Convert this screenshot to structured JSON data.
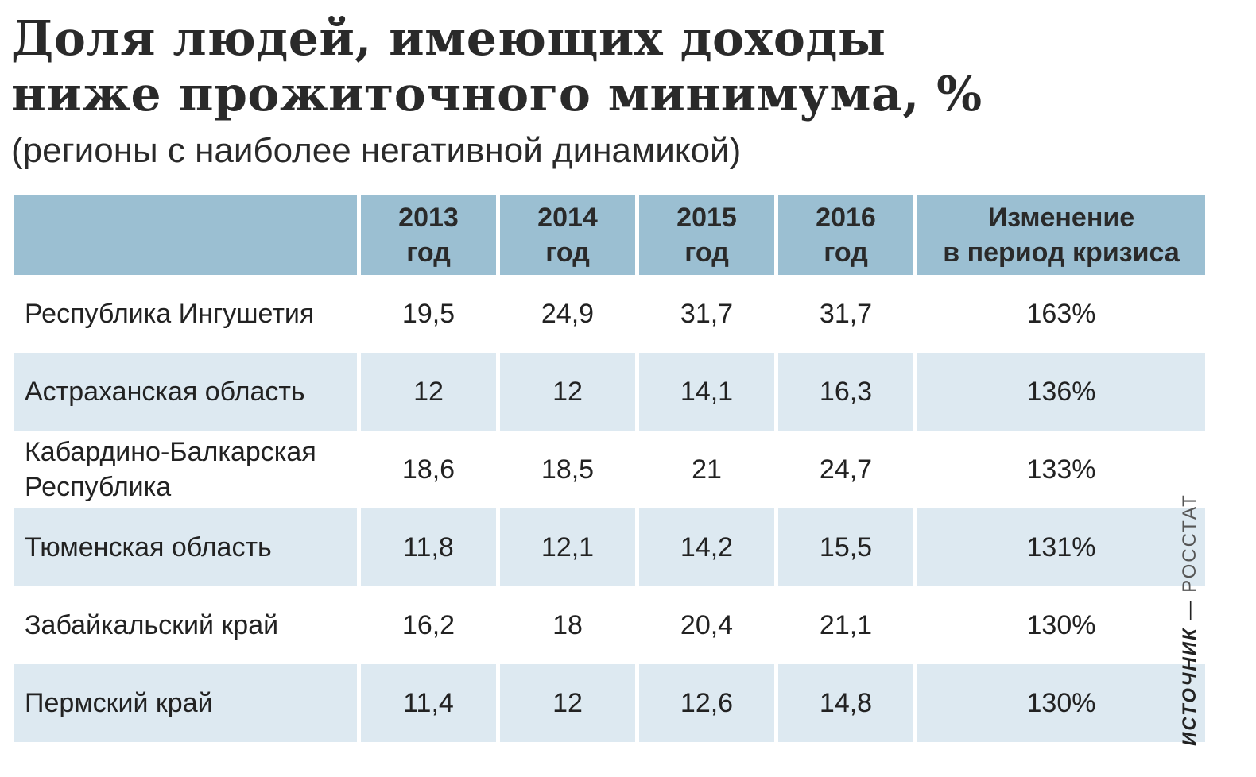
{
  "title_lines": [
    "Доля людей, имеющих доходы",
    "ниже прожиточного минимума, %"
  ],
  "subtitle": "(регионы с наиболее негативной динамикой)",
  "colors": {
    "header_bg": "#9bbfd2",
    "row_alt_bg": "#dde9f1",
    "text": "#222222"
  },
  "chart_data": {
    "type": "table",
    "title": "Доля людей, имеющих доходы ниже прожиточного минимума, %",
    "subtitle": "(регионы с наиболее негативной динамикой)",
    "columns": [
      {
        "line1": "",
        "line2": ""
      },
      {
        "line1": "2013",
        "line2": "год"
      },
      {
        "line1": "2014",
        "line2": "год"
      },
      {
        "line1": "2015",
        "line2": "год"
      },
      {
        "line1": "2016",
        "line2": "год"
      },
      {
        "line1": "Изменение",
        "line2": "в период кризиса"
      }
    ],
    "rows": [
      {
        "region": "Республика Ингушетия",
        "values": [
          "19,5",
          "24,9",
          "31,7",
          "31,7"
        ],
        "change": "163%"
      },
      {
        "region": "Астраханская область",
        "values": [
          "12",
          "12",
          "14,1",
          "16,3"
        ],
        "change": "136%"
      },
      {
        "region": "Кабардино-Балкарская Республика",
        "values": [
          "18,6",
          "18,5",
          "21",
          "24,7"
        ],
        "change": "133%"
      },
      {
        "region": "Тюменская область",
        "values": [
          "11,8",
          "12,1",
          "14,2",
          "15,5"
        ],
        "change": "131%"
      },
      {
        "region": "Забайкальский край",
        "values": [
          "16,2",
          "18",
          "20,4",
          "21,1"
        ],
        "change": "130%"
      },
      {
        "region": "Пермский край",
        "values": [
          "11,4",
          "12",
          "12,6",
          "14,8"
        ],
        "change": "130%"
      }
    ]
  },
  "source": {
    "label": "ИСТОЧНИК",
    "separator": " — ",
    "name": "РОССТАТ"
  }
}
